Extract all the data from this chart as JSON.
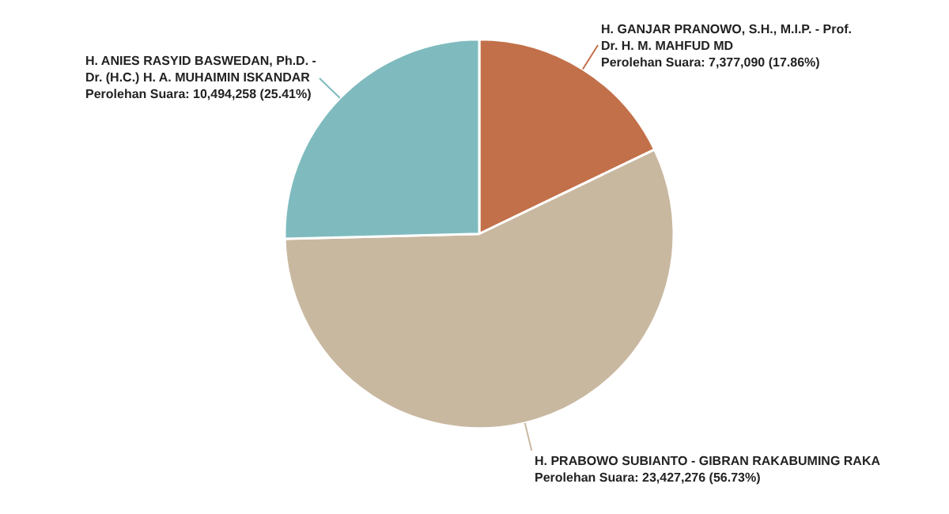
{
  "chart_data": {
    "type": "pie",
    "categories": [
      "H. GANJAR PRANOWO, S.H., M.I.P. - Prof. Dr. H. M. MAHFUD MD",
      "H. PRABOWO SUBIANTO - GIBRAN RAKABUMING RAKA",
      "H. ANIES RASYID BASWEDAN, Ph.D. - Dr. (H.C.) H. A. MUHAIMIN ISKANDAR"
    ],
    "values": [
      7377090,
      23427276,
      10494258
    ],
    "value_labels": [
      "Perolehan Suara: 7,377,090 (17.86%)",
      "Perolehan Suara: 23,427,276 (56.73%)",
      "Perolehan Suara: 10,494,258 (25.41%)"
    ],
    "colors": [
      "#c27049",
      "#c9b8a0",
      "#7fbbbe"
    ]
  }
}
